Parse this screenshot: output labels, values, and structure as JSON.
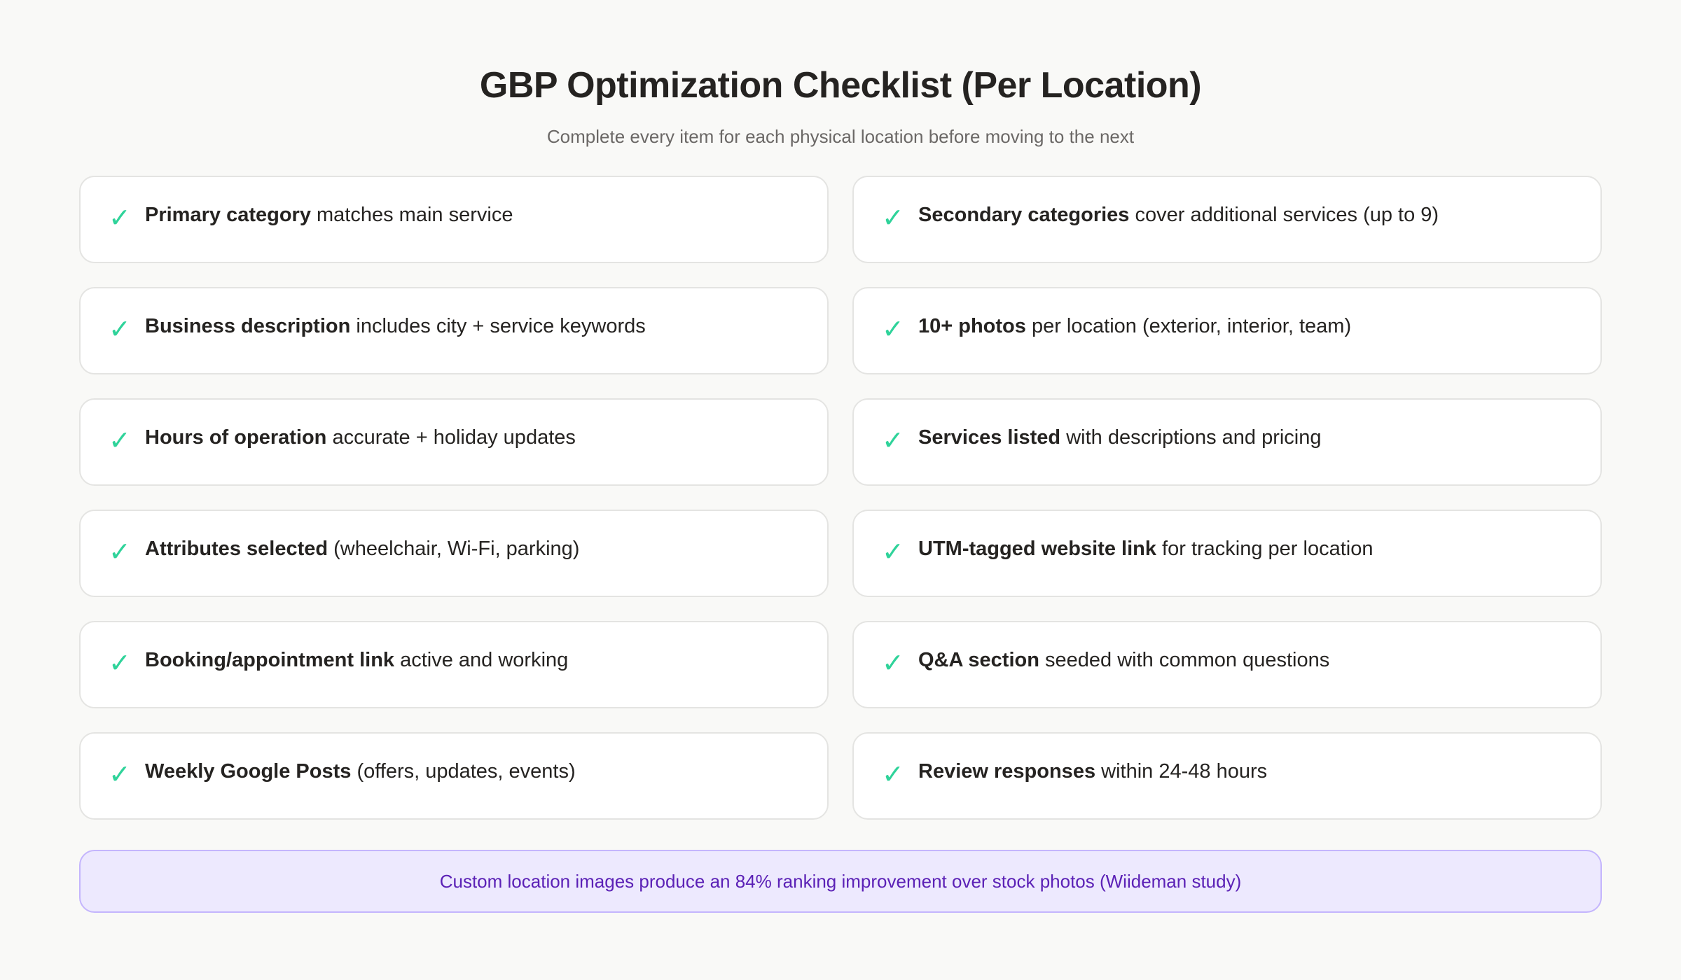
{
  "title": "GBP Optimization Checklist (Per Location)",
  "subtitle": "Complete every item for each physical location before moving to the next",
  "colors": {
    "check": "#2fd39a",
    "banner_bg": "#ede9fe",
    "banner_text": "#5b21b6"
  },
  "items": [
    {
      "bold": "Primary category",
      "rest": " matches main service"
    },
    {
      "bold": "Secondary categories",
      "rest": " cover additional services (up to 9)"
    },
    {
      "bold": "Business description",
      "rest": " includes city + service keywords"
    },
    {
      "bold": "10+ photos",
      "rest": " per location (exterior, interior, team)"
    },
    {
      "bold": "Hours of operation",
      "rest": " accurate + holiday updates"
    },
    {
      "bold": "Services listed",
      "rest": " with descriptions and pricing"
    },
    {
      "bold": "Attributes selected",
      "rest": " (wheelchair, Wi-Fi, parking)"
    },
    {
      "bold": "UTM-tagged website link",
      "rest": " for tracking per location"
    },
    {
      "bold": "Booking/appointment link",
      "rest": " active and working"
    },
    {
      "bold": "Q&A section",
      "rest": " seeded with common questions"
    },
    {
      "bold": "Weekly Google Posts",
      "rest": " (offers, updates, events)"
    },
    {
      "bold": "Review responses",
      "rest": " within 24-48 hours"
    }
  ],
  "check_glyph": "✓",
  "banner": "Custom location images produce an 84% ranking improvement over stock photos (Wiideman study)"
}
